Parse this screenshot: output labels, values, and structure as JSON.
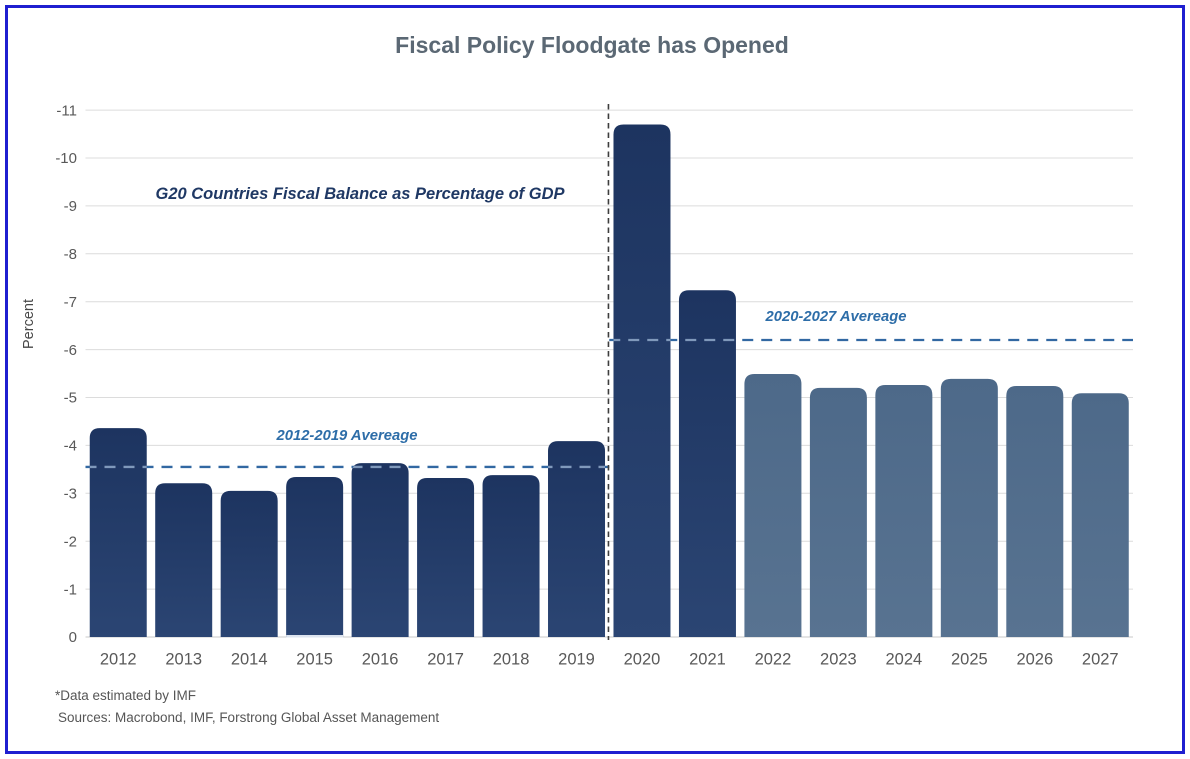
{
  "title": "Fiscal Policy Floodgate has Opened",
  "annotations": {
    "subtitle": "G20 Countries Fiscal Balance as Percentage of GDP",
    "avg1_label": "2012-2019 Avereage",
    "avg2_label": "2020-2027 Avereage"
  },
  "footer": {
    "note": "*Data estimated by IMF",
    "sources": "Sources: Macrobond, IMF, Forstrong Global Asset Management"
  },
  "colors": {
    "frame_border": "#1f1fd0",
    "bar_actual_top": "#1d3460",
    "bar_actual_bottom": "#2b4573",
    "bar_estimated_top": "#4d6989",
    "bar_estimated_bottom": "#587391",
    "average_line": "#3268a2",
    "average_line_on_bar": "#8099bb",
    "divider_line": "#3d3d3d",
    "gridline": "#dcdcdc",
    "zero_line": "#c9c9c9",
    "title_text": "#5b6874",
    "annotation_navy": "#1f3864",
    "annotation_blue": "#2d6da8"
  },
  "chart_data": {
    "type": "bar",
    "title": "Fiscal Policy Floodgate has Opened",
    "ylabel": "Percent",
    "xlabel": "",
    "categories": [
      "2012",
      "2013",
      "2014",
      "2015",
      "2016",
      "2017",
      "2018",
      "2019",
      "2020",
      "2021",
      "2022",
      "2023",
      "2024",
      "2025",
      "2026",
      "2027"
    ],
    "values": [
      -4.36,
      -3.21,
      -3.05,
      -3.34,
      -3.63,
      -3.32,
      -3.38,
      -4.09,
      -10.7,
      -7.24,
      -5.49,
      -5.2,
      -5.26,
      -5.39,
      -5.24,
      -5.09
    ],
    "estimated_from": "2022",
    "divider_after": "2019",
    "highlighted_bar": "2015",
    "ylim": [
      0,
      -11
    ],
    "yticks": [
      0,
      -1,
      -2,
      -3,
      -4,
      -5,
      -6,
      -7,
      -8,
      -9,
      -10,
      -11
    ],
    "grid": "horizontal",
    "legend": "none",
    "averages": [
      {
        "label": "2012-2019 Avereage",
        "value": -3.55,
        "from": "2012",
        "to": "2019"
      },
      {
        "label": "2020-2027 Avereage",
        "value": -6.2,
        "from": "2020",
        "to": "2027"
      }
    ]
  }
}
